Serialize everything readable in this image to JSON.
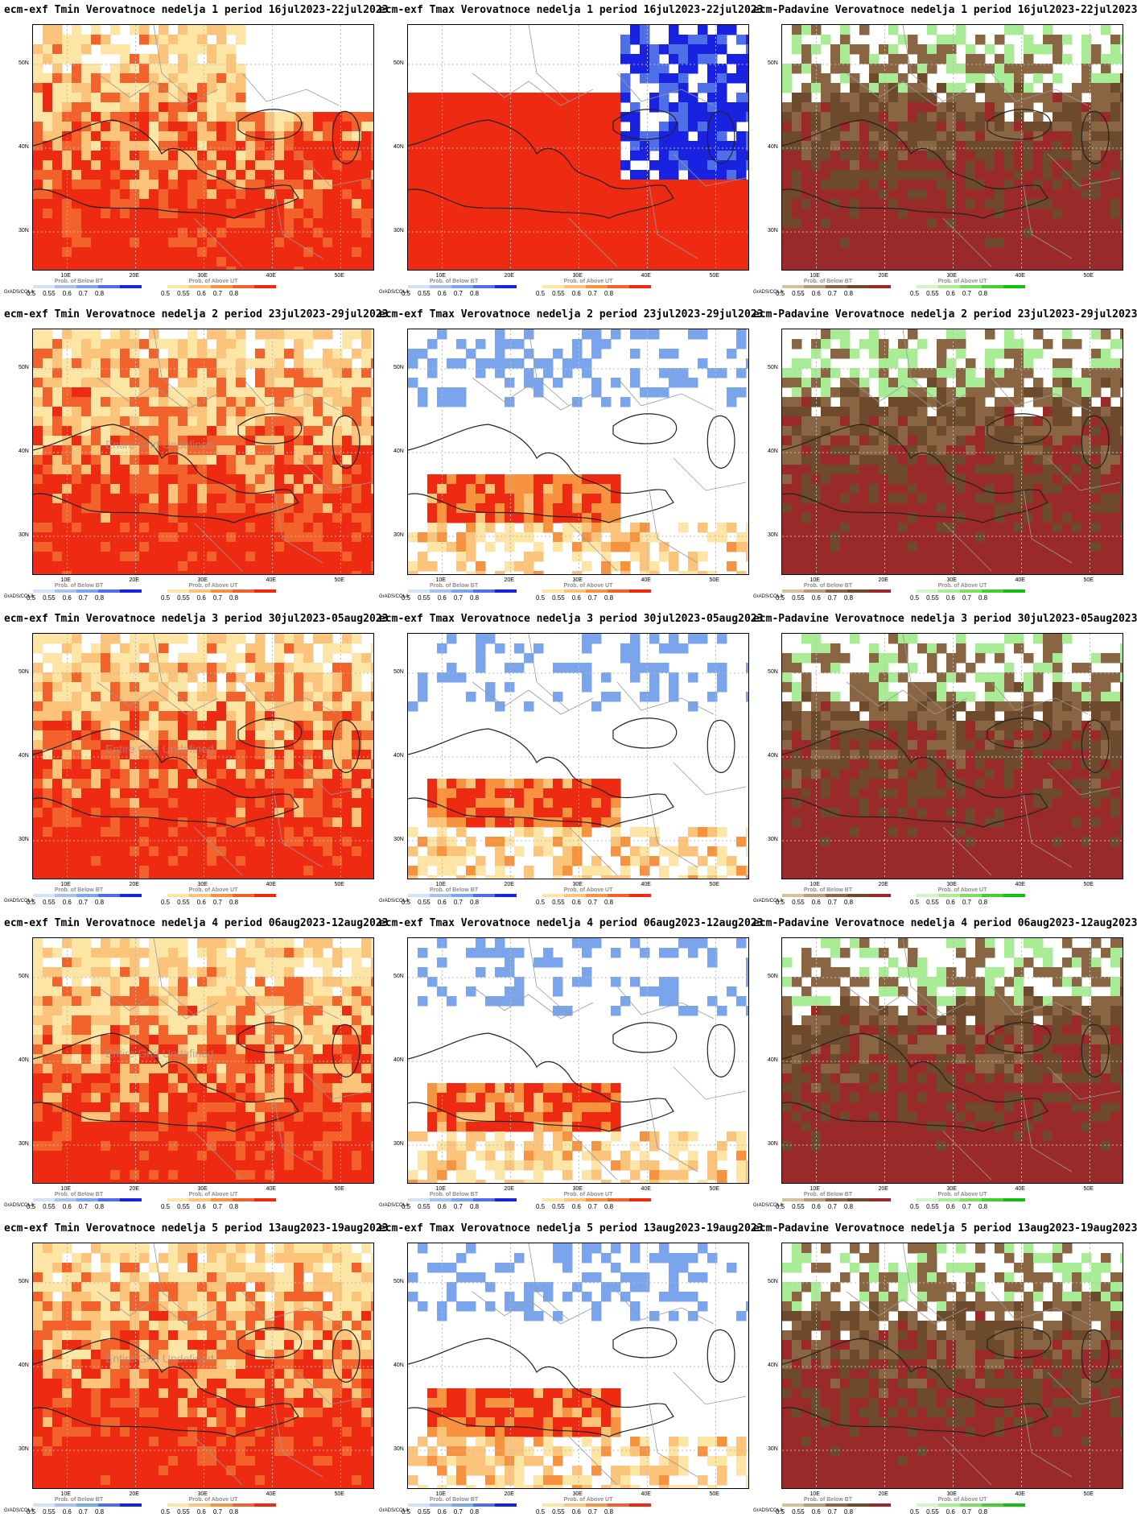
{
  "software": "GrADS/COLA",
  "latitudes": [
    "50N",
    "40N",
    "30N"
  ],
  "longitudes": [
    "10E",
    "20E",
    "30E",
    "40E",
    "50E"
  ],
  "legend_values": [
    "0.5",
    "0.55",
    "0.6",
    "0.7",
    "0.8"
  ],
  "legends": {
    "below": {
      "label": "Prob. of Below BT",
      "colors": [
        "#d4e1f6",
        "#a6c3f0",
        "#7aa4ec",
        "#4f6fe8",
        "#1a22e2"
      ]
    },
    "above": {
      "label": "Prob. of Above UT",
      "colors": [
        "#fde5a6",
        "#fcc37a",
        "#f7923f",
        "#f3622a",
        "#ee2a12"
      ]
    },
    "dry": {
      "label": "Prob. of Below BT",
      "colors": [
        "#d7c0a0",
        "#b89a77",
        "#8a6543",
        "#6e4a2c",
        "#9a2a2a"
      ]
    },
    "wet": {
      "label": "Prob. of Above UT",
      "colors": [
        "#d2f5c8",
        "#a8ec96",
        "#7ddf62",
        "#45d02f",
        "#12c012"
      ]
    }
  },
  "watermark": "Entire Grid Undefined",
  "rows": [
    {
      "week": 1,
      "tmin": "ecm-exf Tmin Verovatnoce nedelja 1 period 16jul2023-22jul2023",
      "tmax": "ecm-exf Tmax Verovatnoce nedelja 1 period 16jul2023-22jul2023",
      "pad": "ecm-Padavine Verovatnoce nedelja 1 period 16jul2023-22jul2023"
    },
    {
      "week": 2,
      "tmin": "ecm-exf Tmin Verovatnoce nedelja 2 period 23jul2023-29jul2023",
      "tmax": "ecm-exf Tmax Verovatnoce nedelja 2 period 23jul2023-29jul2023",
      "pad": "ecm-Padavine Verovatnoce nedelja 2 period 23jul2023-29jul2023"
    },
    {
      "week": 3,
      "tmin": "ecm-exf Tmin Verovatnoce nedelja 3 period 30jul2023-05aug2023",
      "tmax": "ecm-exf Tmax Verovatnoce nedelja 3 period 30jul2023-05aug2023",
      "pad": "ecm-Padavine Verovatnoce nedelja 3 period 30jul2023-05aug2023"
    },
    {
      "week": 4,
      "tmin": "ecm-exf Tmin Verovatnoce nedelja 4 period 06aug2023-12aug2023",
      "tmax": "ecm-exf Tmax Verovatnoce nedelja 4 period 06aug2023-12aug2023",
      "pad": "ecm-Padavine Verovatnoce nedelja 4 period 06aug2023-12aug2023"
    },
    {
      "week": 5,
      "tmin": "ecm-exf Tmin Verovatnoce nedelja 5 period 13aug2023-19aug2023",
      "tmax": "ecm-exf Tmax Verovatnoce nedelja 5 period 13aug2023-19aug2023",
      "pad": "ecm-Padavine Verovatnoce nedelja 5 period 13aug2023-19aug2023"
    }
  ]
}
